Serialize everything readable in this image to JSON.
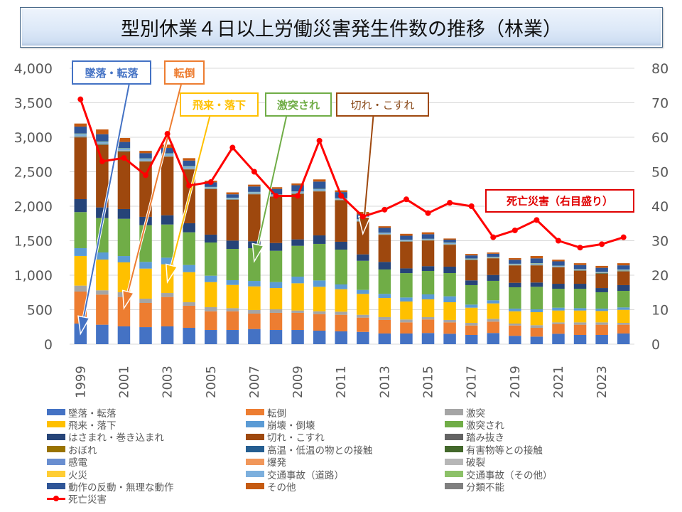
{
  "title": "型別休業４日以上労働災害発生件数の推移（林業）",
  "callouts": [
    {
      "key": "fall",
      "label": "墜落・転落",
      "color": "#4472c4",
      "series_index": 0,
      "target_year": "1999",
      "target_value": 150
    },
    {
      "key": "tumble",
      "label": "転倒",
      "color": "#ed7d31",
      "series_index": 1,
      "target_year": "2001",
      "target_value": 520
    },
    {
      "key": "flying",
      "label": "飛来・落下",
      "color": "#ffc000",
      "series_index": 3,
      "target_year": "2003",
      "target_value": 900
    },
    {
      "key": "struck",
      "label": "激突され",
      "color": "#70ad47",
      "series_index": 5,
      "target_year": "2007",
      "target_value": 1200
    },
    {
      "key": "cut",
      "label": "切れ・こすれ",
      "color": "#9e480e",
      "series_index": 7,
      "target_year": "2012",
      "target_value": 1600
    },
    {
      "key": "death",
      "label": "死亡災害（右目盛り）",
      "color": "#e00000"
    }
  ],
  "chart_data": {
    "type": "bar",
    "stacked": true,
    "title": "型別休業４日以上労働災害発生件数の推移（林業）",
    "xlabel": "",
    "ylabel": "",
    "y2label": "",
    "ylim": [
      0,
      4000
    ],
    "y2lim": [
      0,
      80
    ],
    "yticks": [
      0,
      500,
      1000,
      1500,
      2000,
      2500,
      3000,
      3500,
      4000
    ],
    "ytick_labels": [
      "0",
      "500",
      "1,000",
      "1,500",
      "2,000",
      "2,500",
      "3,000",
      "3,500",
      "4,000"
    ],
    "y2ticks": [
      0,
      10,
      20,
      30,
      40,
      50,
      60,
      70,
      80
    ],
    "y2tick_labels": [
      "0",
      "10",
      "20",
      "30",
      "40",
      "50",
      "60",
      "70",
      "80"
    ],
    "grid": true,
    "legend_position": "bottom",
    "categories": [
      "1999",
      "2000",
      "2001",
      "2002",
      "2003",
      "2004",
      "2005",
      "2006",
      "2007",
      "2008",
      "2009",
      "2010",
      "2011",
      "2012",
      "2013",
      "2014",
      "2015",
      "2016",
      "2017",
      "2018",
      "2019",
      "2020",
      "2021",
      "2022",
      "2023",
      "2024"
    ],
    "xtick_labels": [
      "1999",
      "",
      "2001",
      "",
      "2003",
      "",
      "2005",
      "",
      "2007",
      "",
      "2009",
      "",
      "2011",
      "",
      "2013",
      "",
      "2015",
      "",
      "2017",
      "",
      "2019",
      "",
      "2021",
      "",
      "2023",
      ""
    ],
    "series": [
      {
        "name": "墜落・転落",
        "color": "#4472c4",
        "values": [
          299,
          282,
          258,
          247,
          258,
          237,
          206,
          206,
          220,
          206,
          206,
          196,
          186,
          178,
          155,
          155,
          162,
          151,
          134,
          162,
          121,
          110,
          151,
          134,
          134,
          155
        ]
      },
      {
        "name": "転倒",
        "color": "#ed7d31",
        "values": [
          464,
          437,
          426,
          351,
          426,
          320,
          271,
          271,
          223,
          248,
          248,
          240,
          240,
          207,
          196,
          161,
          196,
          165,
          137,
          165,
          150,
          127,
          141,
          148,
          148,
          127
        ]
      },
      {
        "name": "激突",
        "color": "#a5a5a5",
        "values": [
          86,
          62,
          69,
          62,
          58,
          51,
          59,
          45,
          52,
          51,
          34,
          41,
          45,
          41,
          41,
          42,
          34,
          35,
          38,
          41,
          28,
          38,
          24,
          34,
          34,
          27
        ]
      },
      {
        "name": "飛来・落下",
        "color": "#ffc000",
        "values": [
          430,
          446,
          433,
          436,
          416,
          436,
          364,
          337,
          343,
          309,
          395,
          355,
          326,
          303,
          278,
          261,
          258,
          257,
          220,
          223,
          178,
          189,
          172,
          172,
          165,
          189
        ]
      },
      {
        "name": "崩壊・倒壊",
        "color": "#5b9bd5",
        "values": [
          113,
          103,
          92,
          97,
          96,
          104,
          93,
          69,
          79,
          86,
          96,
          92,
          69,
          58,
          59,
          58,
          72,
          86,
          45,
          45,
          39,
          41,
          41,
          34,
          35,
          35
        ]
      },
      {
        "name": "激突され",
        "color": "#70ad47",
        "values": [
          523,
          498,
          540,
          532,
          481,
          474,
          481,
          453,
          475,
          454,
          447,
          530,
          505,
          422,
          354,
          353,
          340,
          337,
          282,
          282,
          309,
          327,
          275,
          282,
          237,
          240
        ]
      },
      {
        "name": "はさまれ・巻き込まれ",
        "color": "#264478",
        "values": [
          188,
          155,
          141,
          121,
          134,
          131,
          114,
          121,
          100,
          113,
          93,
          123,
          114,
          93,
          110,
          69,
          69,
          93,
          69,
          85,
          65,
          62,
          72,
          72,
          61,
          83
        ]
      },
      {
        "name": "切れ・こすれ",
        "color": "#9e480e",
        "values": [
          894,
          904,
          831,
          800,
          846,
          780,
          660,
          591,
          680,
          670,
          659,
          637,
          601,
          474,
          392,
          386,
          371,
          316,
          292,
          241,
          251,
          247,
          237,
          189,
          207,
          199
        ]
      },
      {
        "name": "踏み抜き",
        "color": "#636363",
        "values": [
          4,
          4,
          3,
          3,
          3,
          3,
          2,
          2,
          2,
          2,
          2,
          2,
          2,
          2,
          2,
          2,
          2,
          2,
          2,
          2,
          2,
          2,
          2,
          2,
          2,
          2
        ]
      },
      {
        "name": "おぼれ",
        "color": "#997300",
        "values": [
          2,
          2,
          2,
          1,
          2,
          1,
          1,
          1,
          1,
          1,
          1,
          1,
          1,
          1,
          1,
          1,
          1,
          1,
          1,
          1,
          1,
          1,
          1,
          1,
          1,
          1
        ]
      },
      {
        "name": "高温・低温の物との接触",
        "color": "#255e91",
        "values": [
          3,
          3,
          3,
          2,
          2,
          2,
          2,
          2,
          2,
          2,
          2,
          2,
          2,
          2,
          2,
          2,
          2,
          2,
          2,
          2,
          2,
          2,
          2,
          2,
          2,
          2
        ]
      },
      {
        "name": "有害物等との接触",
        "color": "#43682b",
        "values": [
          4,
          6,
          5,
          4,
          4,
          3,
          3,
          3,
          3,
          3,
          3,
          3,
          3,
          3,
          3,
          3,
          3,
          3,
          6,
          3,
          3,
          3,
          3,
          3,
          6,
          6
        ]
      },
      {
        "name": "感電",
        "color": "#698ed0",
        "values": [
          2,
          2,
          2,
          2,
          2,
          2,
          1,
          1,
          1,
          1,
          1,
          1,
          1,
          1,
          1,
          1,
          1,
          1,
          1,
          1,
          1,
          1,
          1,
          1,
          1,
          1
        ]
      },
      {
        "name": "爆発",
        "color": "#f1975a",
        "values": [
          1,
          1,
          1,
          1,
          1,
          1,
          1,
          1,
          1,
          1,
          1,
          1,
          1,
          1,
          1,
          1,
          1,
          1,
          1,
          1,
          1,
          1,
          1,
          1,
          1,
          1
        ]
      },
      {
        "name": "破裂",
        "color": "#b7b7b7",
        "values": [
          2,
          2,
          2,
          1,
          1,
          1,
          1,
          1,
          1,
          1,
          1,
          1,
          1,
          1,
          1,
          1,
          1,
          1,
          1,
          1,
          1,
          1,
          1,
          1,
          1,
          1
        ]
      },
      {
        "name": "火災",
        "color": "#ffcd33",
        "values": [
          1,
          1,
          1,
          1,
          1,
          1,
          1,
          1,
          1,
          1,
          1,
          1,
          1,
          1,
          1,
          1,
          1,
          1,
          1,
          1,
          1,
          1,
          1,
          1,
          1,
          1
        ]
      },
      {
        "name": "交通事故（道路）",
        "color": "#7cafdd",
        "values": [
          30,
          25,
          27,
          26,
          30,
          28,
          16,
          15,
          20,
          18,
          20,
          22,
          15,
          20,
          15,
          12,
          11,
          15,
          8,
          8,
          10,
          15,
          10,
          8,
          8,
          10
        ]
      },
      {
        "name": "交通事故（その他）",
        "color": "#8cc168",
        "values": [
          8,
          6,
          6,
          6,
          6,
          6,
          4,
          4,
          4,
          4,
          4,
          4,
          4,
          4,
          4,
          4,
          3,
          5,
          2,
          3,
          3,
          6,
          3,
          3,
          3,
          3
        ]
      },
      {
        "name": "動作の反動・無理な動作",
        "color": "#2f5597",
        "values": [
          100,
          105,
          90,
          76,
          78,
          81,
          66,
          49,
          78,
          80,
          90,
          105,
          88,
          70,
          70,
          59,
          66,
          43,
          45,
          44,
          58,
          70,
          63,
          59,
          60,
          60
        ]
      },
      {
        "name": "その他",
        "color": "#c55a11",
        "values": [
          45,
          69,
          58,
          34,
          48,
          35,
          24,
          28,
          27,
          25,
          26,
          32,
          25,
          36,
          24,
          28,
          28,
          17,
          21,
          18,
          24,
          34,
          24,
          27,
          28,
          31
        ]
      },
      {
        "name": "分類不能",
        "color": "#7f7f7f",
        "values": [
          0,
          0,
          0,
          0,
          0,
          0,
          0,
          0,
          0,
          0,
          0,
          0,
          0,
          0,
          0,
          0,
          0,
          0,
          0,
          0,
          0,
          0,
          0,
          0,
          0,
          0
        ]
      }
    ],
    "line_series": {
      "name": "死亡災害",
      "axis": "right",
      "color": "#ff0000",
      "values": [
        71,
        53,
        54,
        49,
        61,
        46,
        47,
        57,
        50,
        43,
        43,
        59,
        43,
        37,
        39,
        42,
        38,
        41,
        40,
        31,
        33,
        36,
        30,
        28,
        29,
        31
      ]
    }
  }
}
